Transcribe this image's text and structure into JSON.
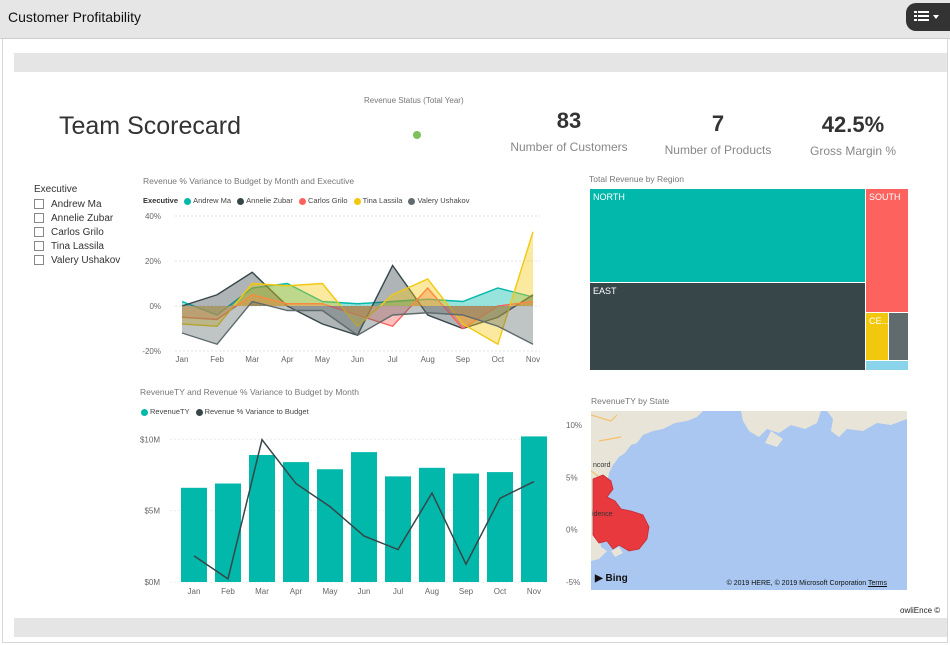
{
  "app": {
    "title": "Customer Profitability"
  },
  "page": {
    "title": "Team Scorecard"
  },
  "status": {
    "title": "Revenue Status (Total Year)",
    "color": "#7cc05c"
  },
  "kpis": [
    {
      "value": "83",
      "label": "Number of Customers"
    },
    {
      "value": "7",
      "label": "Number of Products"
    },
    {
      "value": "42.5%",
      "label": "Gross Margin %"
    }
  ],
  "slicer": {
    "title": "Executive",
    "items": [
      "Andrew Ma",
      "Annelie Zubar",
      "Carlos Grilo",
      "Tina Lassila",
      "Valery Ushakov"
    ]
  },
  "chart_data": [
    {
      "type": "area",
      "title": "Revenue % Variance to Budget by Month and Executive",
      "legend_title": "Executive",
      "categories": [
        "Jan",
        "Feb",
        "Mar",
        "Apr",
        "May",
        "Jun",
        "Jul",
        "Aug",
        "Sep",
        "Oct",
        "Nov"
      ],
      "y_ticks": [
        "40%",
        "20%",
        "0%",
        "-20%"
      ],
      "ylim": [
        -20,
        40
      ],
      "series": [
        {
          "name": "Andrew Ma",
          "color": "#01b8aa",
          "values": [
            2,
            -4,
            8,
            10,
            2,
            1,
            2,
            3,
            2,
            8,
            4
          ]
        },
        {
          "name": "Annelie Zubar",
          "color": "#374649",
          "values": [
            0,
            5,
            15,
            0,
            -8,
            -13,
            18,
            -4,
            -10,
            -5,
            5
          ]
        },
        {
          "name": "Carlos Grilo",
          "color": "#fd625e",
          "values": [
            -5,
            -6,
            5,
            1,
            1,
            -4,
            -9,
            8,
            -10,
            0,
            2
          ]
        },
        {
          "name": "Tina Lassila",
          "color": "#f2c80f",
          "values": [
            -8,
            -9,
            10,
            9,
            10,
            -9,
            5,
            12,
            -8,
            -17,
            33
          ]
        },
        {
          "name": "Valery Ushakov",
          "color": "#5f6b6d",
          "values": [
            -12,
            -17,
            2,
            -2,
            -2,
            -13,
            -4,
            -3,
            -4,
            -9,
            -17
          ]
        }
      ]
    },
    {
      "type": "bar",
      "title": "RevenueTY and Revenue % Variance to Budget by Month",
      "categories": [
        "Jan",
        "Feb",
        "Mar",
        "Apr",
        "May",
        "Jun",
        "Jul",
        "Aug",
        "Sep",
        "Oct",
        "Nov"
      ],
      "y_ticks_left": [
        "$10M",
        "$5M",
        "$0M"
      ],
      "y_ticks_right": [
        "10%",
        "5%",
        "0%",
        "-5%"
      ],
      "ylim_left": [
        0,
        11
      ],
      "ylim_right": [
        -5,
        10
      ],
      "series": [
        {
          "name": "RevenueTY",
          "color": "#01b8aa",
          "values": [
            6.6,
            6.9,
            8.9,
            8.4,
            7.9,
            9.1,
            7.4,
            8.0,
            7.6,
            7.7,
            10.2
          ]
        },
        {
          "name": "Revenue % Variance to Budget",
          "color": "#374649",
          "values": [
            -2.5,
            -4.7,
            8.6,
            4.4,
            2.2,
            -0.6,
            -1.9,
            3.5,
            -3.3,
            3.0,
            4.6
          ]
        }
      ]
    },
    {
      "type": "treemap",
      "title": "Total Revenue by Region",
      "labels": [
        "NORTH",
        "EAST",
        "SOUTH",
        "CE...",
        "",
        ""
      ],
      "colors": [
        "#01b8aa",
        "#374649",
        "#fd625e",
        "#f2c80f",
        "#5f6b6d",
        "#8ad4eb"
      ]
    }
  ],
  "map": {
    "title": "RevenueTY by State",
    "bing_label": "Bing",
    "copyright": "© 2019 HERE, © 2019 Microsoft Corporation",
    "terms": "Terms",
    "city_labels": [
      "ncord",
      "idence"
    ],
    "highlight_color": "#e8393f"
  },
  "footer": {
    "powered_by": "owliEnce ©"
  }
}
